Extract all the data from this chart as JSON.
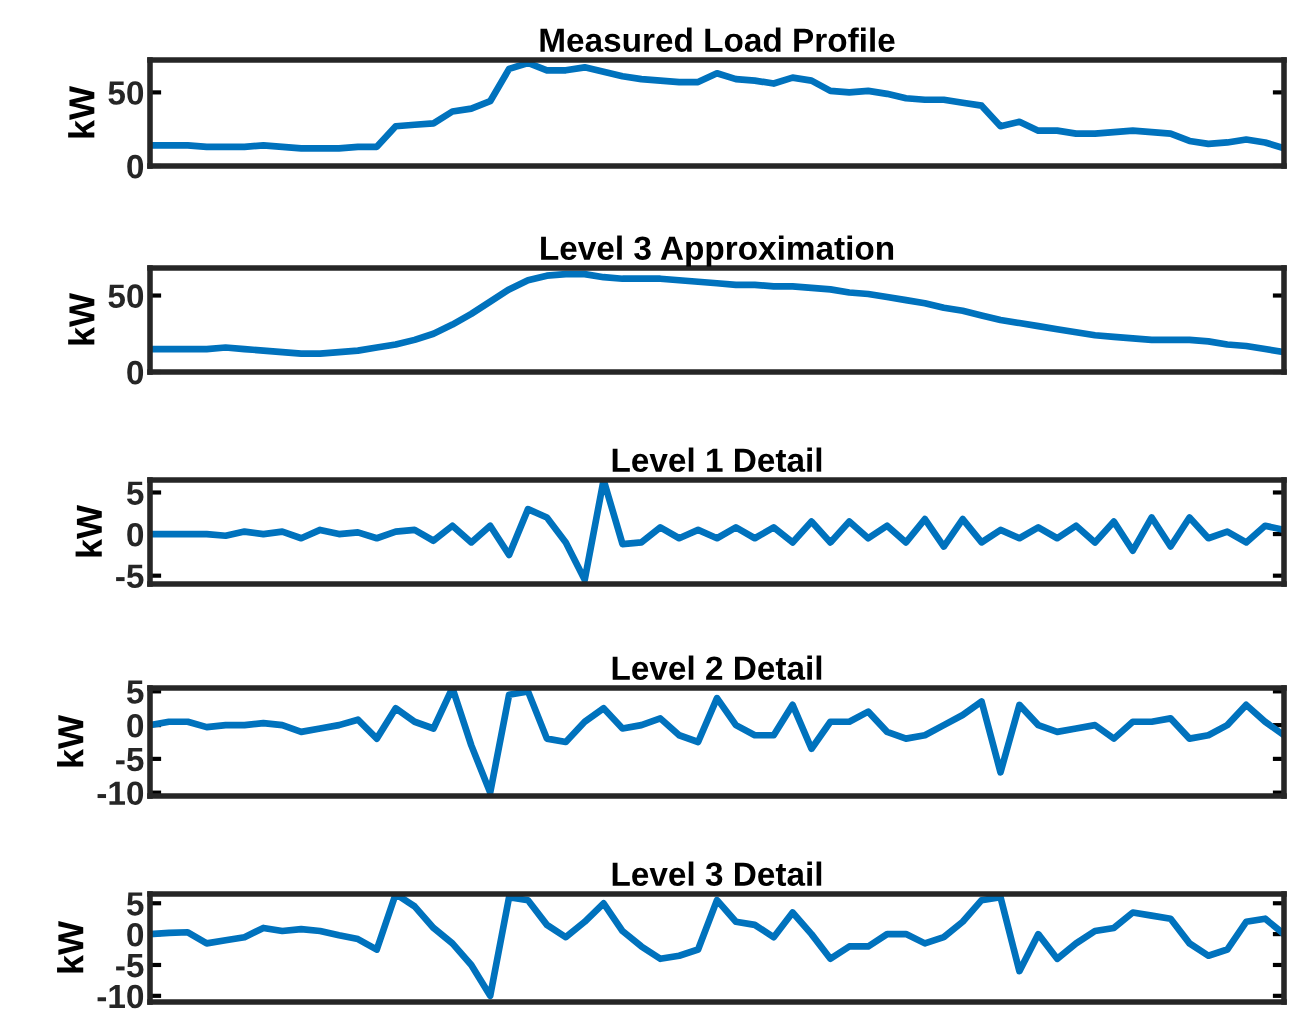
{
  "chart_data": [
    {
      "type": "line",
      "title": "Measured Load Profile",
      "ylabel": "kW",
      "tick_labels": "y",
      "ylim": [
        0,
        72
      ],
      "yticks": [
        0,
        50
      ],
      "categories": [
        null,
        null,
        null,
        null,
        null,
        null,
        null,
        null,
        null,
        null,
        null,
        null,
        null,
        null,
        null,
        null,
        null,
        null,
        null,
        null,
        null,
        null,
        null,
        null,
        null,
        null,
        null,
        null,
        null,
        null,
        null,
        null,
        null,
        null,
        null,
        null,
        null,
        null,
        null,
        null,
        null,
        null,
        null,
        null,
        null,
        null,
        null,
        null,
        null,
        null,
        null,
        null,
        null,
        null,
        null,
        null,
        null,
        null,
        null,
        null,
        null
      ],
      "series": [
        {
          "color": "#0072bd",
          "values": [
            14,
            14,
            14,
            13,
            13,
            13,
            14,
            13,
            12,
            12,
            12,
            13,
            13,
            27,
            28,
            29,
            37,
            39,
            44,
            66,
            70,
            65,
            65,
            67,
            64,
            61,
            59,
            58,
            57,
            57,
            63,
            59,
            58,
            56,
            60,
            58,
            51,
            50,
            51,
            49,
            46,
            45,
            45,
            43,
            41,
            27,
            30,
            24,
            24,
            22,
            22,
            23,
            24,
            23,
            22,
            17,
            15,
            16,
            18,
            16,
            12
          ]
        }
      ]
    },
    {
      "type": "line",
      "title": "Level 3 Approximation",
      "ylabel": "kW",
      "tick_labels": "y",
      "ylim": [
        0,
        68
      ],
      "yticks": [
        0,
        50
      ],
      "categories": [
        null,
        null,
        null,
        null,
        null,
        null,
        null,
        null,
        null,
        null,
        null,
        null,
        null,
        null,
        null,
        null,
        null,
        null,
        null,
        null,
        null,
        null,
        null,
        null,
        null,
        null,
        null,
        null,
        null,
        null,
        null,
        null,
        null,
        null,
        null,
        null,
        null,
        null,
        null,
        null,
        null,
        null,
        null,
        null,
        null,
        null,
        null,
        null,
        null,
        null,
        null,
        null,
        null,
        null,
        null,
        null,
        null,
        null,
        null,
        null,
        null
      ],
      "series": [
        {
          "color": "#0072bd",
          "values": [
            15,
            15,
            15,
            15,
            16,
            15,
            14,
            13,
            12,
            12,
            13,
            14,
            16,
            18,
            21,
            25,
            31,
            38,
            46,
            54,
            60,
            63,
            64,
            64,
            62,
            61,
            61,
            61,
            60,
            59,
            58,
            57,
            57,
            56,
            56,
            55,
            54,
            52,
            51,
            49,
            47,
            45,
            42,
            40,
            37,
            34,
            32,
            30,
            28,
            26,
            24,
            23,
            22,
            21,
            21,
            21,
            20,
            18,
            17,
            15,
            13
          ]
        }
      ]
    },
    {
      "type": "line",
      "title": "Level 1 Detail",
      "ylabel": "kW",
      "tick_labels": "y",
      "ylim": [
        -6,
        6.5
      ],
      "yticks": [
        -5,
        0,
        5
      ],
      "categories": [
        null,
        null,
        null,
        null,
        null,
        null,
        null,
        null,
        null,
        null,
        null,
        null,
        null,
        null,
        null,
        null,
        null,
        null,
        null,
        null,
        null,
        null,
        null,
        null,
        null,
        null,
        null,
        null,
        null,
        null,
        null,
        null,
        null,
        null,
        null,
        null,
        null,
        null,
        null,
        null,
        null,
        null,
        null,
        null,
        null,
        null,
        null,
        null,
        null,
        null,
        null,
        null,
        null,
        null,
        null,
        null,
        null,
        null,
        null,
        null,
        null
      ],
      "series": [
        {
          "color": "#0072bd",
          "values": [
            0,
            0,
            0,
            0,
            -0.2,
            0.3,
            0,
            0.3,
            -0.5,
            0.5,
            0,
            0.2,
            -0.5,
            0.3,
            0.5,
            -0.8,
            1,
            -1,
            1,
            -2.5,
            3,
            2,
            -1,
            -5.5,
            6.5,
            -1.2,
            -1,
            0.8,
            -0.5,
            0.5,
            -0.5,
            0.8,
            -0.5,
            0.8,
            -1,
            1.5,
            -1,
            1.5,
            -0.5,
            1,
            -1,
            1.8,
            -1.5,
            1.8,
            -1,
            0.5,
            -0.5,
            0.8,
            -0.5,
            1,
            -1,
            1.5,
            -2,
            2,
            -1.5,
            2,
            -0.5,
            0.3,
            -1,
            1,
            0.5
          ]
        }
      ]
    },
    {
      "type": "line",
      "title": "Level 2 Detail",
      "ylabel": "kW",
      "tick_labels": "y",
      "ylim": [
        -10.5,
        5.5
      ],
      "yticks": [
        -10,
        -5,
        0,
        5
      ],
      "categories": [
        null,
        null,
        null,
        null,
        null,
        null,
        null,
        null,
        null,
        null,
        null,
        null,
        null,
        null,
        null,
        null,
        null,
        null,
        null,
        null,
        null,
        null,
        null,
        null,
        null,
        null,
        null,
        null,
        null,
        null,
        null,
        null,
        null,
        null,
        null,
        null,
        null,
        null,
        null,
        null,
        null,
        null,
        null,
        null,
        null,
        null,
        null,
        null,
        null,
        null,
        null,
        null,
        null,
        null,
        null,
        null,
        null,
        null,
        null,
        null,
        null
      ],
      "series": [
        {
          "color": "#0072bd",
          "values": [
            0,
            0.5,
            0.5,
            -0.3,
            0,
            0,
            0.3,
            0,
            -1,
            -0.5,
            0,
            0.8,
            -2,
            2.5,
            0.5,
            -0.5,
            5.5,
            -3,
            -10,
            4.5,
            5,
            -2,
            -2.5,
            0.5,
            2.5,
            -0.5,
            0,
            1,
            -1.5,
            -2.5,
            4,
            0,
            -1.5,
            -1.5,
            3,
            -3.5,
            0.5,
            0.5,
            2,
            -1,
            -2,
            -1.5,
            0,
            1.5,
            3.5,
            -7,
            3,
            0,
            -1,
            -0.5,
            0,
            -2,
            0.5,
            0.5,
            1,
            -2,
            -1.5,
            0,
            3,
            0.5,
            -1.5
          ]
        }
      ]
    },
    {
      "type": "line",
      "title": "Level 3 Detail",
      "ylabel": "kW",
      "tick_labels": "y",
      "ylim": [
        -11,
        6.5
      ],
      "yticks": [
        -10,
        -5,
        0,
        5
      ],
      "categories": [
        null,
        null,
        null,
        null,
        null,
        null,
        null,
        null,
        null,
        null,
        null,
        null,
        null,
        null,
        null,
        null,
        null,
        null,
        null,
        null,
        null,
        null,
        null,
        null,
        null,
        null,
        null,
        null,
        null,
        null,
        null,
        null,
        null,
        null,
        null,
        null,
        null,
        null,
        null,
        null,
        null,
        null,
        null,
        null,
        null,
        null,
        null,
        null,
        null,
        null,
        null,
        null,
        null,
        null,
        null,
        null,
        null,
        null,
        null,
        null,
        null
      ],
      "series": [
        {
          "color": "#0072bd",
          "values": [
            0,
            0.2,
            0.3,
            -1.5,
            -1,
            -0.5,
            1,
            0.5,
            0.8,
            0.5,
            -0.2,
            -0.8,
            -2.5,
            6.5,
            4.5,
            1,
            -1.5,
            -5,
            -10,
            6,
            5.5,
            1.5,
            -0.5,
            2,
            5,
            0.5,
            -2,
            -4,
            -3.5,
            -2.5,
            5.5,
            2,
            1.5,
            -0.5,
            3.5,
            0,
            -4,
            -2,
            -2,
            0,
            0,
            -1.5,
            -0.5,
            2,
            5.5,
            6,
            -6,
            0,
            -4,
            -1.5,
            0.5,
            1,
            3.5,
            3,
            2.5,
            -1.5,
            -3.5,
            -2.5,
            2,
            2.5,
            0
          ]
        }
      ]
    }
  ]
}
